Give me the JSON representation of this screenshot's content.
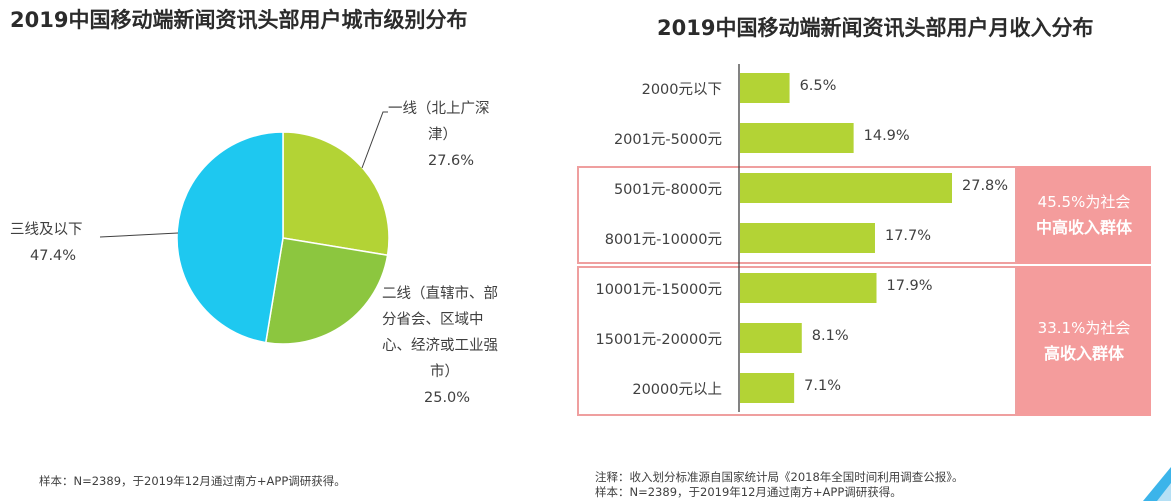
{
  "left": {
    "title": "2019中国移动端新闻资讯头部用户城市级别分布",
    "footnote": "样本：N=2389，于2019年12月通过南方+APP调研获得。"
  },
  "right": {
    "title": "2019中国移动端新闻资讯头部用户月收入分布",
    "footnote_line1": "注释：收入划分标准源自国家统计局《2018年全国时间利用调查公报》。",
    "footnote_line2": "样本：N=2389，于2019年12月通过南方+APP调研获得。",
    "group1": {
      "line1": "45.5%为社会",
      "line2": "中高收入群体"
    },
    "group2": {
      "line1": "33.1%为社会",
      "line2": "高收入群体"
    }
  },
  "chart_data": [
    {
      "type": "pie",
      "title": "2019中国移动端新闻资讯头部用户城市级别分布",
      "slices": [
        {
          "label_lines": [
            "一线（北上广深",
            "津）",
            "27.6%"
          ],
          "value": 27.6,
          "color": "#b3d335"
        },
        {
          "label_lines": [
            "二线（直辖市、部",
            "分省会、区域中",
            "心、经济或工业强",
            "市）",
            "25.0%"
          ],
          "value": 25.0,
          "color": "#8cc63f"
        },
        {
          "label_lines": [
            "三线及以下",
            "47.4%"
          ],
          "value": 47.4,
          "color": "#1ec8f0"
        }
      ]
    },
    {
      "type": "bar",
      "orientation": "horizontal",
      "title": "2019中国移动端新闻资讯头部用户月收入分布",
      "categories": [
        "2000元以下",
        "2001元-5000元",
        "5001元-8000元",
        "8001元-10000元",
        "10001元-15000元",
        "15001元-20000元",
        "20000元以上"
      ],
      "values": [
        6.5,
        14.9,
        27.8,
        17.7,
        17.9,
        8.1,
        7.1
      ],
      "value_labels": [
        "6.5%",
        "14.9%",
        "27.8%",
        "17.7%",
        "17.9%",
        "8.1%",
        "7.1%"
      ],
      "bar_color": "#b3d335"
    }
  ]
}
